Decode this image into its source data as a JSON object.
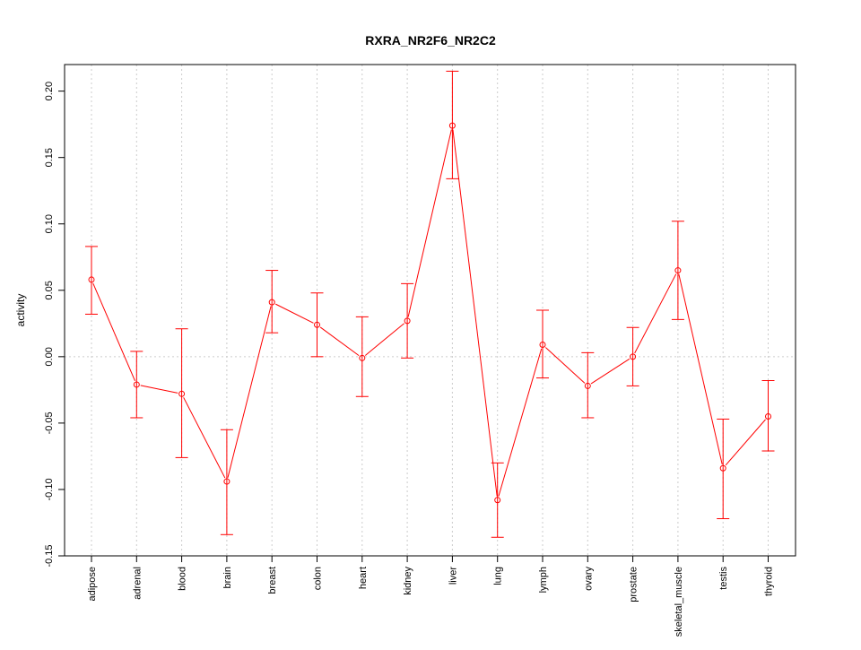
{
  "chart_data": {
    "type": "line",
    "title": "RXRA_NR2F6_NR2C2",
    "xlabel": "",
    "ylabel": "activity",
    "ylim": [
      -0.15,
      0.22
    ],
    "yticks": [
      -0.15,
      -0.1,
      -0.05,
      0.0,
      0.05,
      0.1,
      0.15,
      0.2
    ],
    "ytick_labels": [
      "-0.15",
      "-0.10",
      "-0.05",
      "0.00",
      "0.05",
      "0.10",
      "0.15",
      "0.20"
    ],
    "grid": true,
    "categories": [
      "adipose",
      "adrenal",
      "blood",
      "brain",
      "breast",
      "colon",
      "heart",
      "kidney",
      "liver",
      "lung",
      "lymph",
      "ovary",
      "prostate",
      "skeletal_muscle",
      "testis",
      "thyroid"
    ],
    "series": [
      {
        "values": [
          0.058,
          -0.021,
          -0.028,
          -0.094,
          0.041,
          0.024,
          -0.001,
          0.027,
          0.174,
          -0.108,
          0.009,
          -0.022,
          0.0,
          0.065,
          -0.084,
          -0.045
        ],
        "err_low": [
          0.032,
          -0.046,
          -0.076,
          -0.134,
          0.018,
          0.0,
          -0.03,
          -0.001,
          0.134,
          -0.136,
          -0.016,
          -0.046,
          -0.022,
          0.028,
          -0.122,
          -0.071
        ],
        "err_high": [
          0.083,
          0.004,
          0.021,
          -0.055,
          0.065,
          0.048,
          0.03,
          0.055,
          0.215,
          -0.08,
          0.035,
          0.003,
          0.022,
          0.102,
          -0.047,
          -0.018
        ],
        "color": "#ff0000"
      }
    ]
  }
}
